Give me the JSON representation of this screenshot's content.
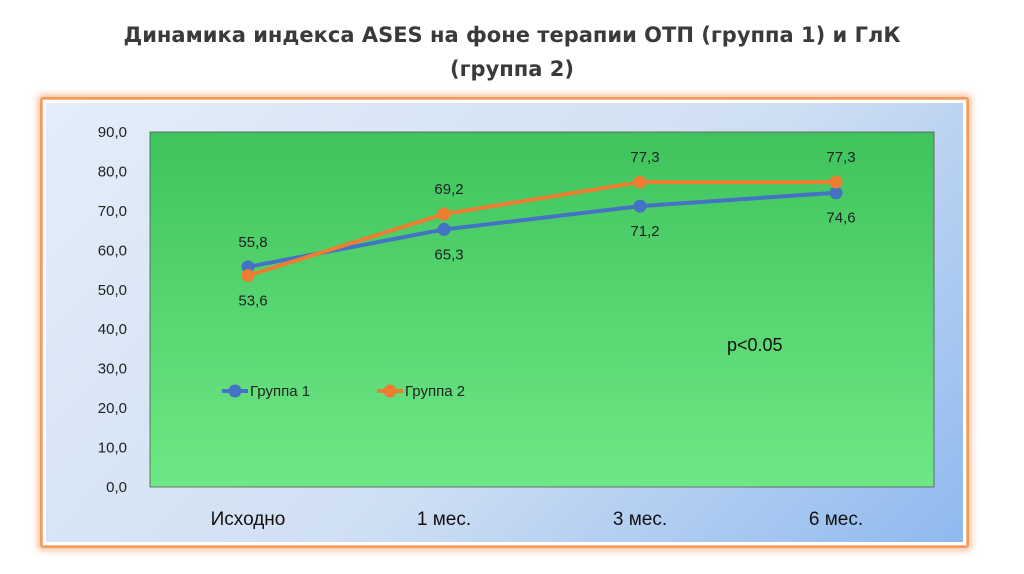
{
  "title_line1": "Динамика индекса ASES на фоне терапии ОТП (группа 1) и ГлК",
  "title_line2": "(группа 2)",
  "chart_data": {
    "type": "line",
    "title": "Динамика индекса ASES на фоне терапии ОТП (группа 1) и ГлК (группа 2)",
    "categories": [
      "Исходно",
      "1  мес.",
      "3 мес.",
      "6 мес."
    ],
    "ylim": [
      0,
      90
    ],
    "yticks": [
      "0,0",
      "10,0",
      "20,0",
      "30,0",
      "40,0",
      "50,0",
      "60,0",
      "70,0",
      "80,0",
      "90,0"
    ],
    "grid": false,
    "legend_position": "bottom-left",
    "annotation": "p<0.05",
    "series": [
      {
        "name": "Группа 1",
        "color": "#4472c4",
        "values": [
          55.8,
          65.3,
          71.2,
          74.6
        ],
        "labels": [
          "55,8",
          "65,3",
          "71,2",
          "74,6"
        ]
      },
      {
        "name": "Группа 2",
        "color": "#ed7d31",
        "values": [
          53.6,
          69.2,
          77.3,
          77.3
        ],
        "labels": [
          "53,6",
          "69,2",
          "77,3",
          "77,3"
        ]
      }
    ],
    "plot_background": "#52cc6a"
  }
}
